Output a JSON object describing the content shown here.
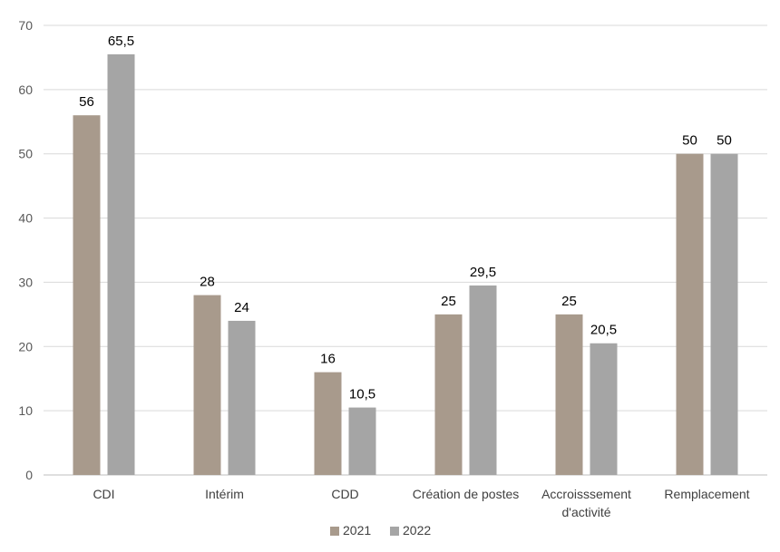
{
  "chart_data": {
    "type": "bar",
    "title": "",
    "xlabel": "",
    "ylabel": "",
    "ylim": [
      0,
      70
    ],
    "yticks": [
      0,
      10,
      20,
      30,
      40,
      50,
      60,
      70
    ],
    "grid": true,
    "legend_position": "bottom",
    "categories": [
      [
        "CDI"
      ],
      [
        "Intérim"
      ],
      [
        "CDD"
      ],
      [
        "Création de postes"
      ],
      [
        "Accroisssement",
        "d'activité"
      ],
      [
        "Remplacement"
      ]
    ],
    "series": [
      {
        "name": "2021",
        "color": "#a89a8c",
        "values": [
          56,
          28,
          16,
          25,
          25,
          50
        ],
        "labels": [
          "56",
          "28",
          "16",
          "25",
          "25",
          "50"
        ]
      },
      {
        "name": "2022",
        "color": "#a5a5a5",
        "values": [
          65.5,
          24,
          10.5,
          29.5,
          20.5,
          50
        ],
        "labels": [
          "65,5",
          "24",
          "10,5",
          "29,5",
          "20,5",
          "50"
        ]
      }
    ]
  }
}
